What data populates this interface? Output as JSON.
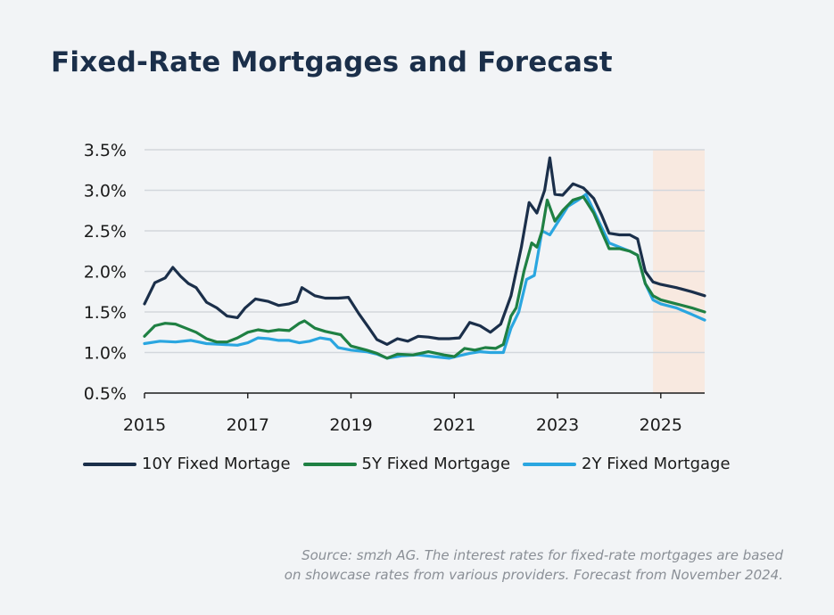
{
  "title": "Fixed-Rate Mortgages and Forecast",
  "source": {
    "line1": "Source: smzh AG. The interest rates for fixed-rate mortgages are based",
    "line2": "on showcase rates from various providers. Forecast from November 2024."
  },
  "chart_data": {
    "type": "line",
    "xlim": [
      2015,
      2025.85
    ],
    "ylim": [
      0.5,
      3.5
    ],
    "x_ticks": [
      2015,
      2017,
      2019,
      2021,
      2023,
      2025
    ],
    "y_ticks": [
      0.5,
      1.0,
      1.5,
      2.0,
      2.5,
      3.0,
      3.5
    ],
    "y_tick_labels": [
      "0.5%",
      "1.0%",
      "1.5%",
      "2.0%",
      "2.5%",
      "3.0%",
      "3.5%"
    ],
    "grid": "horizontal",
    "legend_position": "bottom",
    "forecast_region": {
      "from": 2024.85,
      "to": 2025.85,
      "color": "#f8e9e0"
    },
    "series": [
      {
        "name": "10Y Fixed Mortage",
        "color": "#1b2f4a",
        "x": [
          2015.0,
          2015.2,
          2015.4,
          2015.55,
          2015.7,
          2015.85,
          2016.0,
          2016.2,
          2016.4,
          2016.6,
          2016.8,
          2016.95,
          2017.15,
          2017.4,
          2017.6,
          2017.8,
          2017.95,
          2018.05,
          2018.3,
          2018.5,
          2018.75,
          2018.95,
          2019.15,
          2019.35,
          2019.5,
          2019.7,
          2019.9,
          2020.1,
          2020.3,
          2020.5,
          2020.7,
          2020.9,
          2021.1,
          2021.3,
          2021.5,
          2021.7,
          2021.9,
          2022.1,
          2022.3,
          2022.45,
          2022.6,
          2022.75,
          2022.85,
          2022.95,
          2023.1,
          2023.3,
          2023.5,
          2023.7,
          2023.85,
          2024.0,
          2024.2,
          2024.4,
          2024.55,
          2024.7,
          2024.85,
          2025.0,
          2025.3,
          2025.6,
          2025.85
        ],
        "values": [
          1.6,
          1.86,
          1.92,
          2.05,
          1.94,
          1.85,
          1.8,
          1.62,
          1.55,
          1.45,
          1.43,
          1.55,
          1.66,
          1.63,
          1.58,
          1.6,
          1.63,
          1.8,
          1.7,
          1.67,
          1.67,
          1.68,
          1.48,
          1.3,
          1.16,
          1.1,
          1.17,
          1.14,
          1.2,
          1.19,
          1.17,
          1.17,
          1.18,
          1.37,
          1.33,
          1.25,
          1.35,
          1.7,
          2.3,
          2.85,
          2.72,
          3.0,
          3.4,
          2.95,
          2.94,
          3.08,
          3.03,
          2.9,
          2.7,
          2.47,
          2.45,
          2.45,
          2.4,
          2.0,
          1.87,
          1.84,
          1.8,
          1.75,
          1.7
        ]
      },
      {
        "name": "5Y Fixed Mortgage",
        "color": "#1f8043",
        "x": [
          2015.0,
          2015.2,
          2015.4,
          2015.6,
          2015.8,
          2016.0,
          2016.2,
          2016.4,
          2016.6,
          2016.8,
          2017.0,
          2017.2,
          2017.4,
          2017.6,
          2017.8,
          2018.0,
          2018.1,
          2018.3,
          2018.5,
          2018.8,
          2019.0,
          2019.3,
          2019.5,
          2019.7,
          2019.9,
          2020.2,
          2020.5,
          2020.8,
          2021.0,
          2021.2,
          2021.4,
          2021.6,
          2021.8,
          2021.95,
          2022.1,
          2022.2,
          2022.35,
          2022.5,
          2022.6,
          2022.7,
          2022.8,
          2022.95,
          2023.1,
          2023.3,
          2023.5,
          2023.7,
          2023.85,
          2024.0,
          2024.2,
          2024.4,
          2024.55,
          2024.7,
          2024.85,
          2025.0,
          2025.3,
          2025.6,
          2025.85
        ],
        "values": [
          1.2,
          1.33,
          1.36,
          1.35,
          1.3,
          1.25,
          1.17,
          1.13,
          1.13,
          1.18,
          1.25,
          1.28,
          1.26,
          1.28,
          1.27,
          1.36,
          1.39,
          1.3,
          1.26,
          1.22,
          1.08,
          1.03,
          0.99,
          0.93,
          0.98,
          0.97,
          1.01,
          0.97,
          0.95,
          1.05,
          1.03,
          1.06,
          1.05,
          1.1,
          1.45,
          1.55,
          2.0,
          2.35,
          2.3,
          2.5,
          2.88,
          2.62,
          2.75,
          2.88,
          2.92,
          2.72,
          2.5,
          2.28,
          2.28,
          2.25,
          2.2,
          1.85,
          1.7,
          1.65,
          1.6,
          1.55,
          1.5
        ]
      },
      {
        "name": "2Y Fixed Mortgage",
        "color": "#2aa6e0",
        "x": [
          2015.0,
          2015.3,
          2015.6,
          2015.9,
          2016.2,
          2016.5,
          2016.8,
          2017.0,
          2017.2,
          2017.4,
          2017.6,
          2017.8,
          2018.0,
          2018.2,
          2018.4,
          2018.6,
          2018.75,
          2019.0,
          2019.3,
          2019.5,
          2019.7,
          2020.0,
          2020.3,
          2020.6,
          2020.9,
          2021.1,
          2021.3,
          2021.5,
          2021.7,
          2021.95,
          2022.1,
          2022.25,
          2022.4,
          2022.55,
          2022.7,
          2022.85,
          2023.0,
          2023.2,
          2023.4,
          2023.55,
          2023.7,
          2023.85,
          2024.0,
          2024.2,
          2024.4,
          2024.55,
          2024.7,
          2024.85,
          2025.0,
          2025.3,
          2025.6,
          2025.85
        ],
        "values": [
          1.11,
          1.14,
          1.13,
          1.15,
          1.11,
          1.1,
          1.09,
          1.12,
          1.18,
          1.17,
          1.15,
          1.15,
          1.12,
          1.14,
          1.18,
          1.16,
          1.06,
          1.03,
          1.01,
          0.98,
          0.93,
          0.96,
          0.97,
          0.95,
          0.93,
          0.96,
          0.99,
          1.01,
          1.0,
          1.0,
          1.3,
          1.5,
          1.9,
          1.95,
          2.5,
          2.45,
          2.6,
          2.8,
          2.88,
          2.95,
          2.75,
          2.55,
          2.35,
          2.3,
          2.25,
          2.2,
          1.85,
          1.65,
          1.6,
          1.55,
          1.47,
          1.4
        ]
      }
    ]
  }
}
